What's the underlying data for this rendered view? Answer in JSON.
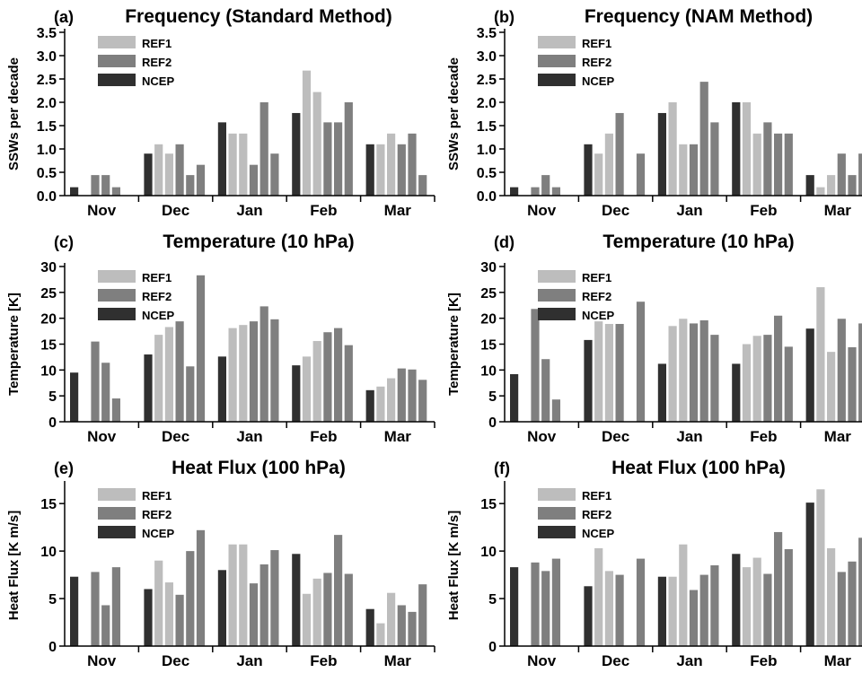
{
  "colors": {
    "REF1": "#bdbdbd",
    "REF2": "#7f7f7f",
    "NCEP": "#303030"
  },
  "chart_data": [
    {
      "type": "bar",
      "panel": "(a)",
      "title": "Frequency (Standard Method)",
      "ylabel": "SSWs per decade",
      "ylim": [
        0,
        3.5
      ],
      "yticks": [
        "0.0",
        "0.5",
        "1.0",
        "1.5",
        "2.0",
        "2.5",
        "3.0",
        "3.5"
      ],
      "categories": [
        "Nov",
        "Dec",
        "Jan",
        "Feb",
        "Mar"
      ],
      "legend": [
        "REF1",
        "REF2",
        "NCEP"
      ],
      "bars": [
        [
          [
            "NCEP",
            0.18
          ],
          [
            "REF2",
            0
          ],
          [
            "REF2",
            0.44
          ],
          [
            "REF2",
            0.44
          ],
          [
            "REF2",
            0.18
          ],
          [
            "REF2",
            0
          ]
        ],
        [
          [
            "NCEP",
            0.9
          ],
          [
            "REF1",
            1.1
          ],
          [
            "REF1",
            0.9
          ],
          [
            "REF2",
            1.1
          ],
          [
            "REF2",
            0.44
          ],
          [
            "REF2",
            0.66
          ]
        ],
        [
          [
            "NCEP",
            1.57
          ],
          [
            "REF1",
            1.33
          ],
          [
            "REF1",
            1.33
          ],
          [
            "REF2",
            0.66
          ],
          [
            "REF2",
            2.0
          ],
          [
            "REF2",
            0.9
          ]
        ],
        [
          [
            "NCEP",
            1.77
          ],
          [
            "REF1",
            2.68
          ],
          [
            "REF1",
            2.22
          ],
          [
            "REF2",
            1.57
          ],
          [
            "REF2",
            1.57
          ],
          [
            "REF2",
            2.0
          ]
        ],
        [
          [
            "NCEP",
            1.1
          ],
          [
            "REF1",
            1.1
          ],
          [
            "REF1",
            1.33
          ],
          [
            "REF2",
            1.1
          ],
          [
            "REF2",
            1.33
          ],
          [
            "REF2",
            0.44
          ]
        ]
      ]
    },
    {
      "type": "bar",
      "panel": "(b)",
      "title": "Frequency (NAM Method)",
      "ylabel": "SSWs per decade",
      "ylim": [
        0,
        3.5
      ],
      "yticks": [
        "0.0",
        "0.5",
        "1.0",
        "1.5",
        "2.0",
        "2.5",
        "3.0",
        "3.5"
      ],
      "categories": [
        "Nov",
        "Dec",
        "Jan",
        "Feb",
        "Mar"
      ],
      "legend": [
        "REF1",
        "REF2",
        "NCEP"
      ],
      "bars": [
        [
          [
            "NCEP",
            0.18
          ],
          [
            "REF2",
            0
          ],
          [
            "REF2",
            0.18
          ],
          [
            "REF2",
            0.44
          ],
          [
            "REF2",
            0.18
          ],
          [
            "REF2",
            0
          ]
        ],
        [
          [
            "NCEP",
            1.1
          ],
          [
            "REF1",
            0.9
          ],
          [
            "REF1",
            1.33
          ],
          [
            "REF2",
            1.77
          ],
          [
            "REF2",
            0
          ],
          [
            "REF2",
            0.9
          ]
        ],
        [
          [
            "NCEP",
            1.77
          ],
          [
            "REF1",
            2.0
          ],
          [
            "REF1",
            1.1
          ],
          [
            "REF2",
            1.1
          ],
          [
            "REF2",
            2.44
          ],
          [
            "REF2",
            1.57
          ]
        ],
        [
          [
            "NCEP",
            2.0
          ],
          [
            "REF1",
            2.0
          ],
          [
            "REF1",
            1.33
          ],
          [
            "REF2",
            1.57
          ],
          [
            "REF2",
            1.33
          ],
          [
            "REF2",
            1.33
          ]
        ],
        [
          [
            "NCEP",
            0.44
          ],
          [
            "REF1",
            0.18
          ],
          [
            "REF1",
            0.44
          ],
          [
            "REF2",
            0.9
          ],
          [
            "REF2",
            0.44
          ],
          [
            "REF2",
            0.9
          ]
        ]
      ]
    },
    {
      "type": "bar",
      "panel": "(c)",
      "title": "Temperature (10 hPa)",
      "ylabel": "Temperature [K]",
      "ylim": [
        0,
        30
      ],
      "yticks": [
        "0",
        "5",
        "10",
        "15",
        "20",
        "25",
        "30"
      ],
      "categories": [
        "Nov",
        "Dec",
        "Jan",
        "Feb",
        "Mar"
      ],
      "legend": [
        "REF1",
        "REF2",
        "NCEP"
      ],
      "bars": [
        [
          [
            "NCEP",
            9.5
          ],
          [
            "REF2",
            0
          ],
          [
            "REF2",
            15.5
          ],
          [
            "REF2",
            11.4
          ],
          [
            "REF2",
            4.5
          ],
          [
            "REF2",
            0
          ]
        ],
        [
          [
            "NCEP",
            13.0
          ],
          [
            "REF1",
            16.8
          ],
          [
            "REF1",
            18.3
          ],
          [
            "REF2",
            19.4
          ],
          [
            "REF2",
            10.7
          ],
          [
            "REF2",
            28.3
          ]
        ],
        [
          [
            "NCEP",
            12.6
          ],
          [
            "REF1",
            18.1
          ],
          [
            "REF1",
            18.7
          ],
          [
            "REF2",
            19.4
          ],
          [
            "REF2",
            22.3
          ],
          [
            "REF2",
            19.8
          ]
        ],
        [
          [
            "NCEP",
            10.9
          ],
          [
            "REF1",
            12.6
          ],
          [
            "REF1",
            15.6
          ],
          [
            "REF2",
            17.3
          ],
          [
            "REF2",
            18.1
          ],
          [
            "REF2",
            14.8
          ]
        ],
        [
          [
            "NCEP",
            6.1
          ],
          [
            "REF1",
            6.8
          ],
          [
            "REF1",
            8.4
          ],
          [
            "REF2",
            10.3
          ],
          [
            "REF2",
            10.1
          ],
          [
            "REF2",
            8.1
          ]
        ]
      ]
    },
    {
      "type": "bar",
      "panel": "(d)",
      "title": "Temperature (10 hPa)",
      "ylabel": "Temperature [K]",
      "ylim": [
        0,
        30
      ],
      "yticks": [
        "0",
        "5",
        "10",
        "15",
        "20",
        "25",
        "30"
      ],
      "categories": [
        "Nov",
        "Dec",
        "Jan",
        "Feb",
        "Mar"
      ],
      "legend": [
        "REF1",
        "REF2",
        "NCEP"
      ],
      "bars": [
        [
          [
            "NCEP",
            9.2
          ],
          [
            "REF2",
            0
          ],
          [
            "REF2",
            21.8
          ],
          [
            "REF2",
            12.1
          ],
          [
            "REF2",
            4.3
          ],
          [
            "REF2",
            0
          ]
        ],
        [
          [
            "NCEP",
            15.8
          ],
          [
            "REF1",
            19.4
          ],
          [
            "REF1",
            18.9
          ],
          [
            "REF2",
            18.9
          ],
          [
            "REF2",
            0
          ],
          [
            "REF2",
            23.2
          ]
        ],
        [
          [
            "NCEP",
            11.2
          ],
          [
            "REF1",
            18.5
          ],
          [
            "REF1",
            19.9
          ],
          [
            "REF2",
            19.0
          ],
          [
            "REF2",
            19.6
          ],
          [
            "REF2",
            16.8
          ]
        ],
        [
          [
            "NCEP",
            11.2
          ],
          [
            "REF1",
            15.0
          ],
          [
            "REF1",
            16.6
          ],
          [
            "REF2",
            16.8
          ],
          [
            "REF2",
            20.5
          ],
          [
            "REF2",
            14.5
          ]
        ],
        [
          [
            "NCEP",
            18.0
          ],
          [
            "REF1",
            26.0
          ],
          [
            "REF1",
            13.5
          ],
          [
            "REF2",
            19.9
          ],
          [
            "REF2",
            14.4
          ],
          [
            "REF2",
            19.0
          ]
        ]
      ]
    },
    {
      "type": "bar",
      "panel": "(e)",
      "title": "Heat Flux (100 hPa)",
      "ylabel": "Heat Flux [K m/s]",
      "ylim": [
        0,
        17
      ],
      "yticks": [
        "0",
        "5",
        "10",
        "15"
      ],
      "ytickvals": [
        0,
        5,
        10,
        15
      ],
      "categories": [
        "Nov",
        "Dec",
        "Jan",
        "Feb",
        "Mar"
      ],
      "legend": [
        "REF1",
        "REF2",
        "NCEP"
      ],
      "bars": [
        [
          [
            "NCEP",
            7.3
          ],
          [
            "REF2",
            0
          ],
          [
            "REF2",
            7.8
          ],
          [
            "REF2",
            4.3
          ],
          [
            "REF2",
            8.3
          ],
          [
            "REF2",
            0
          ]
        ],
        [
          [
            "NCEP",
            6.0
          ],
          [
            "REF1",
            9.0
          ],
          [
            "REF1",
            6.7
          ],
          [
            "REF2",
            5.4
          ],
          [
            "REF2",
            10.0
          ],
          [
            "REF2",
            12.2
          ]
        ],
        [
          [
            "NCEP",
            8.0
          ],
          [
            "REF1",
            10.7
          ],
          [
            "REF1",
            10.7
          ],
          [
            "REF2",
            6.6
          ],
          [
            "REF2",
            8.6
          ],
          [
            "REF2",
            10.1
          ]
        ],
        [
          [
            "NCEP",
            9.7
          ],
          [
            "REF1",
            5.5
          ],
          [
            "REF1",
            7.1
          ],
          [
            "REF2",
            7.7
          ],
          [
            "REF2",
            11.7
          ],
          [
            "REF2",
            7.6
          ]
        ],
        [
          [
            "NCEP",
            3.9
          ],
          [
            "REF1",
            2.4
          ],
          [
            "REF1",
            5.6
          ],
          [
            "REF2",
            4.3
          ],
          [
            "REF2",
            3.6
          ],
          [
            "REF2",
            6.5
          ]
        ]
      ]
    },
    {
      "type": "bar",
      "panel": "(f)",
      "title": "Heat Flux (100 hPa)",
      "ylabel": "Heat Flux [K m/s]",
      "ylim": [
        0,
        17
      ],
      "yticks": [
        "0",
        "5",
        "10",
        "15"
      ],
      "ytickvals": [
        0,
        5,
        10,
        15
      ],
      "categories": [
        "Nov",
        "Dec",
        "Jan",
        "Feb",
        "Mar"
      ],
      "legend": [
        "REF1",
        "REF2",
        "NCEP"
      ],
      "bars": [
        [
          [
            "NCEP",
            8.3
          ],
          [
            "REF2",
            0
          ],
          [
            "REF2",
            8.8
          ],
          [
            "REF2",
            7.9
          ],
          [
            "REF2",
            9.2
          ],
          [
            "REF2",
            0
          ]
        ],
        [
          [
            "NCEP",
            6.3
          ],
          [
            "REF1",
            10.3
          ],
          [
            "REF1",
            7.9
          ],
          [
            "REF2",
            7.5
          ],
          [
            "REF2",
            0
          ],
          [
            "REF2",
            9.2
          ]
        ],
        [
          [
            "NCEP",
            7.3
          ],
          [
            "REF1",
            7.3
          ],
          [
            "REF1",
            10.7
          ],
          [
            "REF2",
            5.9
          ],
          [
            "REF2",
            7.5
          ],
          [
            "REF2",
            8.5
          ]
        ],
        [
          [
            "NCEP",
            9.7
          ],
          [
            "REF1",
            8.3
          ],
          [
            "REF1",
            9.3
          ],
          [
            "REF2",
            7.6
          ],
          [
            "REF2",
            12.0
          ],
          [
            "REF2",
            10.2
          ]
        ],
        [
          [
            "NCEP",
            15.1
          ],
          [
            "REF1",
            16.5
          ],
          [
            "REF1",
            10.3
          ],
          [
            "REF2",
            7.8
          ],
          [
            "REF2",
            8.9
          ],
          [
            "REF2",
            11.4
          ]
        ]
      ]
    }
  ]
}
